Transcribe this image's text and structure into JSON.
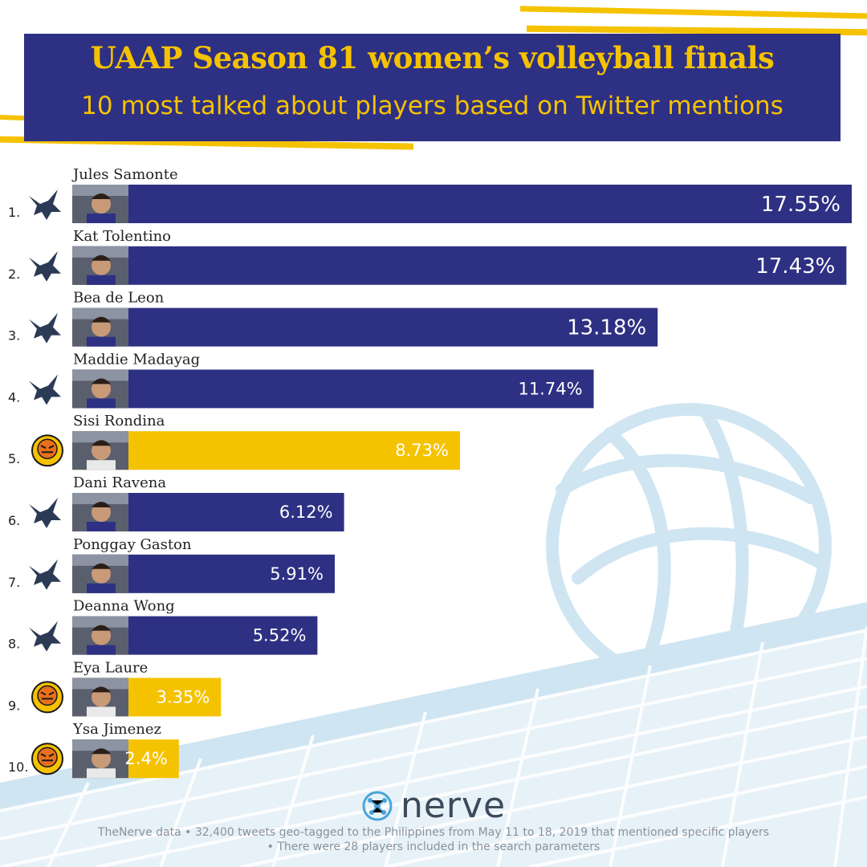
{
  "header": {
    "title": "UAAP Season 81 women’s volleyball finals",
    "subtitle": "10 most talked about players based on Twitter mentions"
  },
  "colors": {
    "navy": "#2e3083",
    "gold": "#f5c200",
    "light_blue": "#cfe5f2"
  },
  "chart_data": {
    "type": "bar",
    "orientation": "horizontal",
    "categories": [
      "Jules Samonte",
      "Kat Tolentino",
      "Bea de Leon",
      "Maddie Madayag",
      "Sisi Rondina",
      "Dani Ravena",
      "Ponggay Gaston",
      "Deanna Wong",
      "Eya Laure",
      "Ysa Jimenez"
    ],
    "ranks": [
      "1.",
      "2.",
      "3.",
      "4.",
      "5.",
      "6.",
      "7.",
      "8.",
      "9.",
      "10."
    ],
    "values": [
      17.55,
      17.43,
      13.18,
      11.74,
      8.73,
      6.12,
      5.91,
      5.52,
      3.35,
      2.4
    ],
    "value_labels": [
      "17.55%",
      "17.43%",
      "13.18%",
      "11.74%",
      "8.73%",
      "6.12%",
      "5.91%",
      "5.52%",
      "3.35%",
      "2.4%"
    ],
    "teams": [
      "eagle",
      "eagle",
      "eagle",
      "eagle",
      "tiger",
      "eagle",
      "eagle",
      "eagle",
      "tiger",
      "tiger"
    ],
    "team_colors": {
      "eagle": "#2e3083",
      "tiger": "#f5c200"
    },
    "team_icons": {
      "eagle": "eagle-logo-icon",
      "tiger": "tiger-logo-icon"
    },
    "unit": "%",
    "xlim": [
      0,
      17.55
    ],
    "grid": false,
    "legend": "none"
  },
  "footer": {
    "brand": "nerve",
    "note1": "TheNerve data • 32,400 tweets geo-tagged to the Philippines from May 11 to 18, 2019 that mentioned specific players",
    "note2": "• There were 28 players included in the search parameters"
  }
}
